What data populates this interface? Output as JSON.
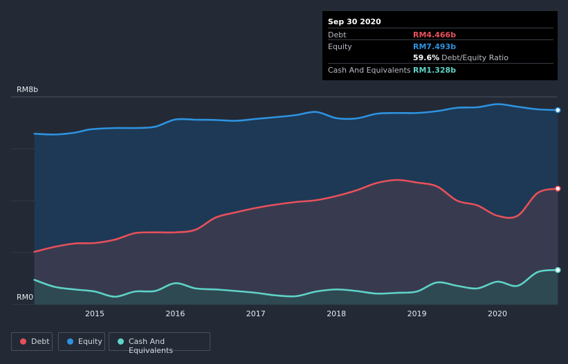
{
  "chart_data": {
    "type": "area",
    "y_axis": {
      "min": 0,
      "max": 8,
      "unit": "billion RM",
      "tick_labels": [
        "RM8b",
        "RM0"
      ]
    },
    "x_axis": {
      "ticks": [
        2015,
        2016,
        2017,
        2018,
        2019,
        2020
      ],
      "tick_labels": [
        "2015",
        "2016",
        "2017",
        "2018",
        "2019",
        "2020"
      ],
      "range": [
        2014.25,
        2020.75
      ]
    },
    "grid": true,
    "legend_position": "bottom-left",
    "series": [
      {
        "name": "Equity",
        "key": "equity",
        "color": "#2e93e0",
        "x": [
          2014.25,
          2014.5,
          2014.75,
          2014.95,
          2015.25,
          2015.5,
          2015.75,
          2016.0,
          2016.25,
          2016.5,
          2016.75,
          2017.0,
          2017.25,
          2017.5,
          2017.75,
          2018.0,
          2018.25,
          2018.5,
          2018.75,
          2019.0,
          2019.25,
          2019.5,
          2019.75,
          2020.0,
          2020.25,
          2020.5,
          2020.75
        ],
        "y": [
          6.58,
          6.55,
          6.62,
          6.75,
          6.8,
          6.8,
          6.85,
          7.13,
          7.12,
          7.11,
          7.08,
          7.15,
          7.22,
          7.3,
          7.42,
          7.18,
          7.17,
          7.35,
          7.38,
          7.38,
          7.45,
          7.58,
          7.6,
          7.72,
          7.62,
          7.52,
          7.49
        ]
      },
      {
        "name": "Debt",
        "key": "debt",
        "color": "#e8505b",
        "x": [
          2014.25,
          2014.5,
          2014.75,
          2015.0,
          2015.25,
          2015.5,
          2015.75,
          2016.0,
          2016.25,
          2016.5,
          2016.75,
          2017.0,
          2017.25,
          2017.5,
          2017.75,
          2018.0,
          2018.25,
          2018.5,
          2018.75,
          2019.0,
          2019.25,
          2019.5,
          2019.75,
          2020.0,
          2020.25,
          2020.5,
          2020.75
        ],
        "y": [
          2.03,
          2.22,
          2.35,
          2.37,
          2.5,
          2.75,
          2.78,
          2.78,
          2.88,
          3.35,
          3.55,
          3.72,
          3.85,
          3.95,
          4.02,
          4.18,
          4.4,
          4.68,
          4.8,
          4.7,
          4.55,
          4.0,
          3.82,
          3.42,
          3.42,
          4.3,
          4.466
        ]
      },
      {
        "name": "Cash And Equivalents",
        "key": "cash",
        "color": "#5fd3c9",
        "x": [
          2014.25,
          2014.5,
          2014.75,
          2015.0,
          2015.25,
          2015.5,
          2015.75,
          2016.0,
          2016.25,
          2016.5,
          2016.75,
          2017.0,
          2017.25,
          2017.5,
          2017.75,
          2018.0,
          2018.25,
          2018.5,
          2018.75,
          2019.0,
          2019.25,
          2019.5,
          2019.75,
          2020.0,
          2020.25,
          2020.5,
          2020.75
        ],
        "y": [
          0.95,
          0.68,
          0.58,
          0.5,
          0.3,
          0.5,
          0.52,
          0.82,
          0.62,
          0.58,
          0.52,
          0.45,
          0.35,
          0.32,
          0.5,
          0.58,
          0.52,
          0.42,
          0.45,
          0.5,
          0.85,
          0.72,
          0.62,
          0.88,
          0.72,
          1.25,
          1.328
        ]
      }
    ]
  },
  "tooltip": {
    "date": "Sep 30 2020",
    "rows": [
      {
        "label": "Debt",
        "value": "RM4.466b",
        "color": "#e8505b"
      },
      {
        "label": "Equity",
        "value": "RM7.493b",
        "color": "#2e93e0"
      },
      {
        "ratio_value": "59.6%",
        "ratio_label": "Debt/Equity Ratio"
      },
      {
        "label": "Cash And Equivalents",
        "value": "RM1.328b",
        "color": "#5fd3c9"
      }
    ]
  },
  "legend": [
    {
      "label": "Debt",
      "color": "#e8505b"
    },
    {
      "label": "Equity",
      "color": "#2e93e0"
    },
    {
      "label": "Cash And Equivalents",
      "color": "#5fd3c9"
    }
  ]
}
